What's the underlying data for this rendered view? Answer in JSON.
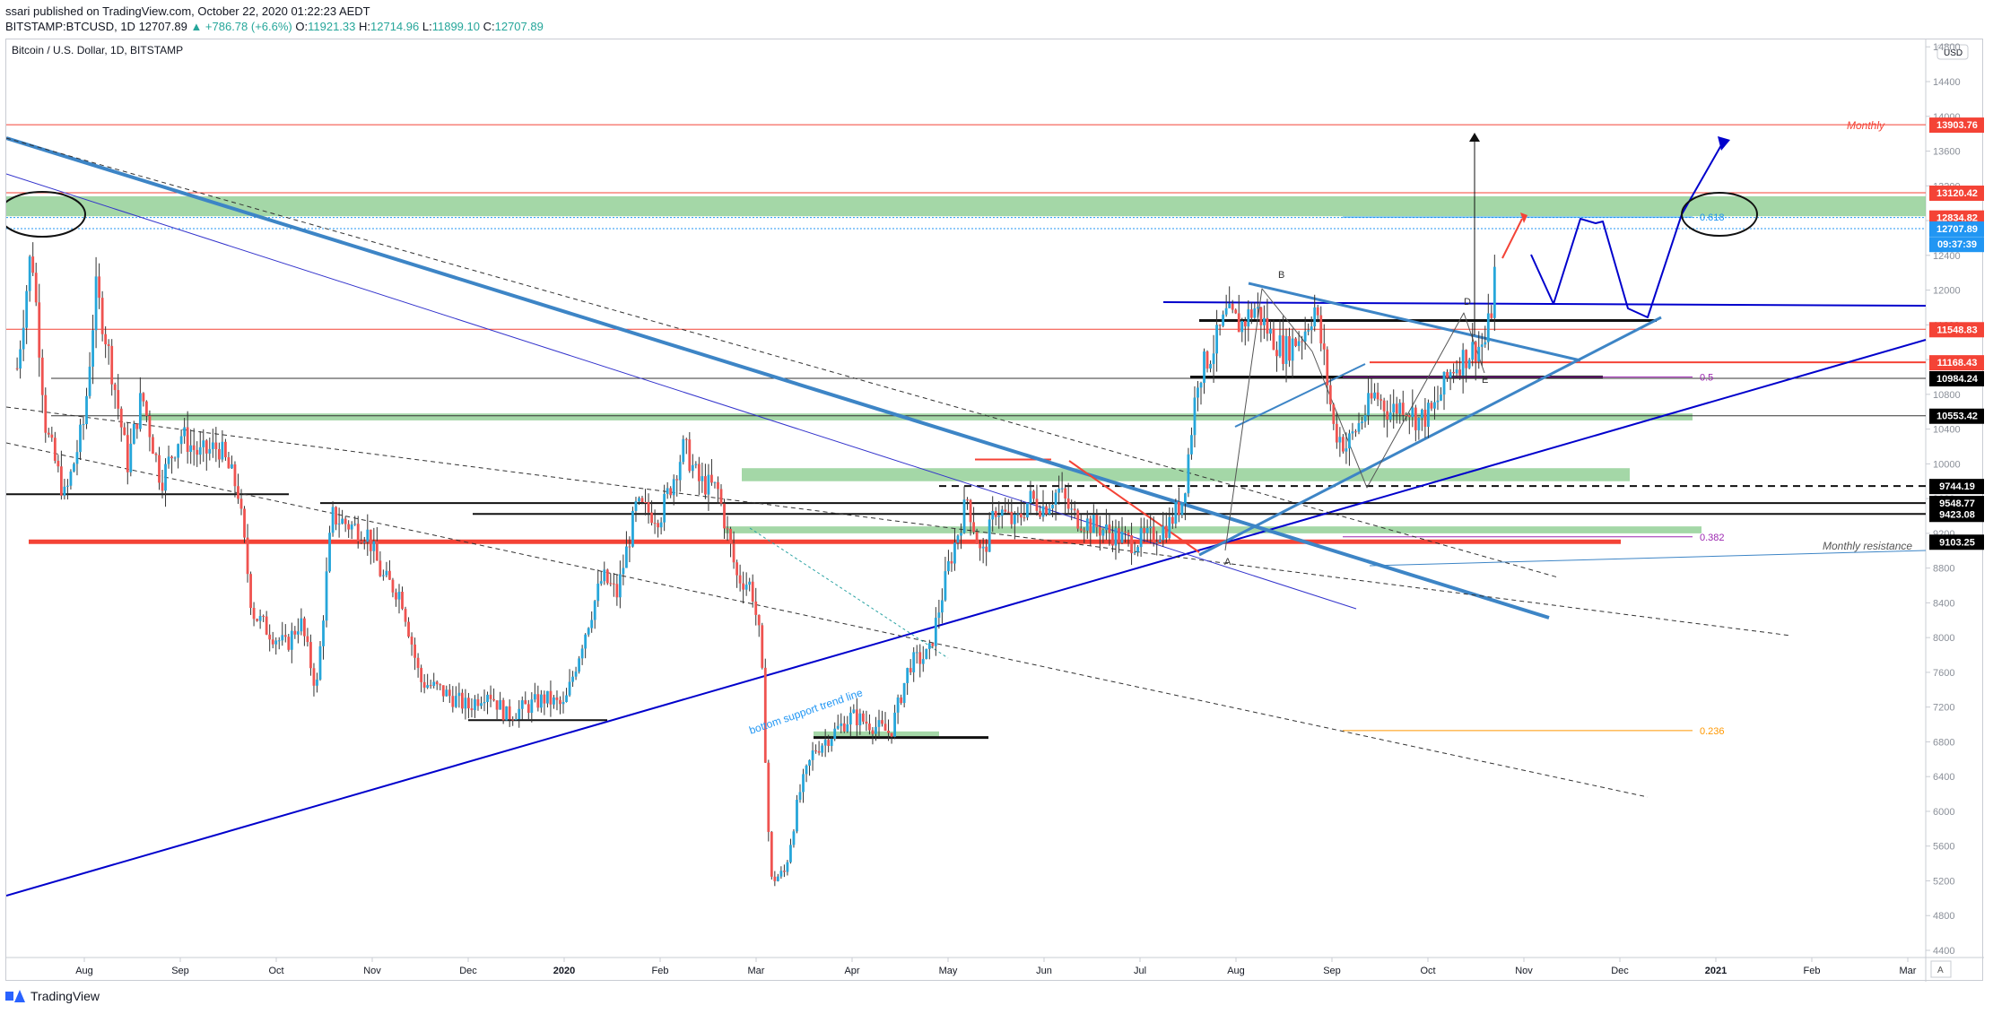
{
  "header": {
    "publisher": "ssari published on TradingView.com, October 22, 2020 01:22:23 AEDT",
    "symbol": "BITSTAMP:BTCUSD, 1D",
    "last": "12707.89",
    "change": "▲ +786.78 (+6.6%)",
    "o_label": "O:",
    "o": "11921.33",
    "h_label": "H:",
    "h": "12714.96",
    "l_label": "L:",
    "l": "11899.10",
    "c_label": "C:",
    "c": "12707.89"
  },
  "chart_title": "Bitcoin / U.S. Dollar, 1D, BITSTAMP",
  "currency_button": "USD",
  "footer_logo": "TradingView",
  "auto_scale": "A",
  "colors": {
    "up": "#26a6da",
    "down": "#ef5350",
    "trend_blue": "#0000cc",
    "light_blue": "#3d85c6",
    "zone_green": "#86c98a",
    "red_level": "#f44336"
  },
  "chart_data": {
    "type": "candlestick",
    "ylim": [
      4400,
      14800
    ],
    "x_months": [
      "Aug",
      "Sep",
      "Oct",
      "Nov",
      "Dec",
      "2020",
      "Feb",
      "Mar",
      "Apr",
      "May",
      "Jun",
      "Jul",
      "Aug",
      "Sep",
      "Oct",
      "Nov",
      "Dec",
      "2021",
      "Feb",
      "Mar"
    ],
    "y_ticks": [
      4400,
      4800,
      5200,
      5600,
      6000,
      6400,
      6800,
      7200,
      7600,
      8000,
      8400,
      8800,
      9200,
      9600,
      10000,
      10400,
      10800,
      11200,
      11600,
      12000,
      12400,
      12800,
      13200,
      13600,
      14000,
      14400,
      14800
    ],
    "price_badges": [
      {
        "label": "13903.76",
        "value": 13903.76,
        "color": "#f44336"
      },
      {
        "label": "13120.42",
        "value": 13120.42,
        "color": "#f44336"
      },
      {
        "label": "12834.82",
        "value": 12834.82,
        "color": "#f44336"
      },
      {
        "label": "12707.89",
        "value": 12707.89,
        "color": "#2196f3"
      },
      {
        "label": "09:37:39",
        "value": 12530,
        "color": "#2196f3"
      },
      {
        "label": "11548.83",
        "value": 11548.83,
        "color": "#f44336"
      },
      {
        "label": "11168.43",
        "value": 11168.43,
        "color": "#f44336"
      },
      {
        "label": "10984.24",
        "value": 10984.24,
        "color": "#000000"
      },
      {
        "label": "10553.42",
        "value": 10553.42,
        "color": "#000000"
      },
      {
        "label": "9744.19",
        "value": 9744.19,
        "color": "#000000"
      },
      {
        "label": "9548.77",
        "value": 9548.77,
        "color": "#000000"
      },
      {
        "label": "9423.08",
        "value": 9423.08,
        "color": "#000000"
      },
      {
        "label": "9103.25",
        "value": 9103.25,
        "color": "#000000"
      }
    ],
    "annotations": {
      "monthly": "Monthly",
      "monthly_resistance": "Monthly resistance",
      "trend_label": "bottom support trend line",
      "fib_0618": "0.618",
      "fib_05": "0.5",
      "fib_0382": "0.382",
      "fib_0236": "0.236",
      "point_a": "A",
      "point_b": "B",
      "point_d": "D",
      "point_e": "E"
    },
    "anchors": [
      {
        "month": -0.7,
        "price": 11100
      },
      {
        "month": -0.55,
        "price": 12500
      },
      {
        "month": -0.4,
        "price": 10400
      },
      {
        "month": -0.2,
        "price": 9600
      },
      {
        "month": 0.0,
        "price": 10500
      },
      {
        "month": 0.12,
        "price": 12000
      },
      {
        "month": 0.2,
        "price": 11600
      },
      {
        "month": 0.3,
        "price": 11000
      },
      {
        "month": 0.45,
        "price": 10000
      },
      {
        "month": 0.6,
        "price": 10800
      },
      {
        "month": 0.8,
        "price": 9800
      },
      {
        "month": 1.0,
        "price": 10350
      },
      {
        "month": 1.2,
        "price": 10100
      },
      {
        "month": 1.4,
        "price": 10200
      },
      {
        "month": 1.6,
        "price": 9700
      },
      {
        "month": 1.75,
        "price": 8300
      },
      {
        "month": 1.9,
        "price": 8100
      },
      {
        "month": 2.1,
        "price": 7900
      },
      {
        "month": 2.25,
        "price": 8200
      },
      {
        "month": 2.42,
        "price": 7400
      },
      {
        "month": 2.58,
        "price": 9400
      },
      {
        "month": 2.75,
        "price": 9300
      },
      {
        "month": 2.95,
        "price": 9200
      },
      {
        "month": 3.1,
        "price": 8700
      },
      {
        "month": 3.3,
        "price": 8500
      },
      {
        "month": 3.5,
        "price": 7500
      },
      {
        "month": 3.7,
        "price": 7400
      },
      {
        "month": 4.0,
        "price": 7200
      },
      {
        "month": 4.2,
        "price": 7400
      },
      {
        "month": 4.4,
        "price": 7100
      },
      {
        "month": 4.6,
        "price": 7200
      },
      {
        "month": 4.8,
        "price": 7300
      },
      {
        "month": 5.0,
        "price": 7200
      },
      {
        "month": 5.2,
        "price": 8000
      },
      {
        "month": 5.4,
        "price": 8700
      },
      {
        "month": 5.55,
        "price": 8500
      },
      {
        "month": 5.75,
        "price": 9500
      },
      {
        "month": 6.0,
        "price": 9400
      },
      {
        "month": 6.25,
        "price": 10200
      },
      {
        "month": 6.4,
        "price": 9800
      },
      {
        "month": 6.6,
        "price": 9700
      },
      {
        "month": 6.8,
        "price": 8700
      },
      {
        "month": 6.95,
        "price": 8600
      },
      {
        "month": 7.05,
        "price": 7900
      },
      {
        "month": 7.15,
        "price": 5200
      },
      {
        "month": 7.3,
        "price": 5300
      },
      {
        "month": 7.45,
        "price": 6200
      },
      {
        "month": 7.6,
        "price": 6700
      },
      {
        "month": 7.8,
        "price": 6900
      },
      {
        "month": 8.0,
        "price": 7100
      },
      {
        "month": 8.2,
        "price": 7000
      },
      {
        "month": 8.4,
        "price": 6900
      },
      {
        "month": 8.6,
        "price": 7700
      },
      {
        "month": 8.8,
        "price": 7800
      },
      {
        "month": 9.0,
        "price": 8800
      },
      {
        "month": 9.2,
        "price": 9600
      },
      {
        "month": 9.35,
        "price": 8900
      },
      {
        "month": 9.5,
        "price": 9500
      },
      {
        "month": 9.7,
        "price": 9300
      },
      {
        "month": 9.85,
        "price": 9600
      },
      {
        "month": 10.0,
        "price": 9500
      },
      {
        "month": 10.15,
        "price": 9700
      },
      {
        "month": 10.3,
        "price": 9400
      },
      {
        "month": 10.5,
        "price": 9300
      },
      {
        "month": 10.7,
        "price": 9200
      },
      {
        "month": 10.9,
        "price": 9100
      },
      {
        "month": 11.1,
        "price": 9150
      },
      {
        "month": 11.3,
        "price": 9300
      },
      {
        "month": 11.45,
        "price": 9600
      },
      {
        "month": 11.6,
        "price": 11000
      },
      {
        "month": 11.75,
        "price": 11300
      },
      {
        "month": 11.9,
        "price": 11700
      },
      {
        "month": 12.05,
        "price": 11600
      },
      {
        "month": 12.2,
        "price": 11800
      },
      {
        "month": 12.35,
        "price": 11500
      },
      {
        "month": 12.5,
        "price": 11300
      },
      {
        "month": 12.7,
        "price": 11500
      },
      {
        "month": 12.82,
        "price": 11800
      },
      {
        "month": 12.92,
        "price": 11200
      },
      {
        "month": 13.02,
        "price": 10400
      },
      {
        "month": 13.15,
        "price": 10200
      },
      {
        "month": 13.3,
        "price": 10500
      },
      {
        "month": 13.45,
        "price": 10800
      },
      {
        "month": 13.6,
        "price": 10600
      },
      {
        "month": 13.75,
        "price": 10700
      },
      {
        "month": 13.9,
        "price": 10500
      },
      {
        "month": 14.05,
        "price": 10600
      },
      {
        "month": 14.25,
        "price": 11100
      },
      {
        "month": 14.45,
        "price": 11300
      },
      {
        "month": 14.6,
        "price": 11400
      },
      {
        "month": 14.68,
        "price": 11900
      },
      {
        "month": 14.72,
        "price": 12700
      }
    ]
  }
}
